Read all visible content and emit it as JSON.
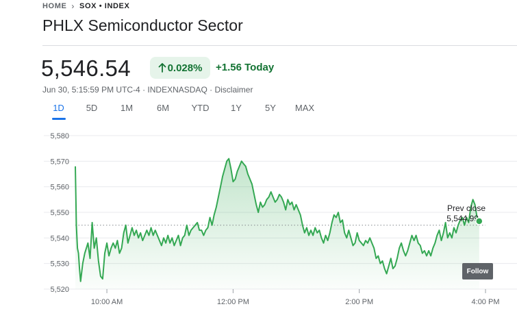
{
  "breadcrumb": {
    "home": "HOME",
    "current": "SOX • INDEX"
  },
  "title": "PHLX Semiconductor Sector",
  "price": "5,546.54",
  "change": {
    "pct": "0.028%",
    "abs": "+1.56 Today",
    "direction_icon": "arrow-up-icon"
  },
  "meta": {
    "timestamp": "Jun 30, 5:15:59 PM UTC-4",
    "exchange": "INDEXNASDAQ",
    "sep": "·",
    "disclaimer": "Disclaimer"
  },
  "tabs": [
    "1D",
    "5D",
    "1M",
    "6M",
    "YTD",
    "1Y",
    "5Y",
    "MAX"
  ],
  "active_tab": "1D",
  "follow_label": "Follow",
  "colors": {
    "positive": "#137333",
    "line": "#34a853",
    "accent": "#1a73e8"
  },
  "chart_data": {
    "type": "area",
    "title": "",
    "ylim": [
      5520,
      5580
    ],
    "y_ticks": [
      5580,
      5570,
      5560,
      5550,
      5540,
      5530,
      5520
    ],
    "y_tick_labels": [
      "5,580",
      "5,570",
      "5,560",
      "5,550",
      "5,540",
      "5,530",
      "5,520"
    ],
    "x_range_minutes": [
      570,
      960
    ],
    "x_ticks": [
      600,
      720,
      840,
      960
    ],
    "x_tick_labels": [
      "10:00 AM",
      "12:00 PM",
      "2:00 PM",
      "4:00 PM"
    ],
    "prev_close": 5544.99,
    "prev_close_label": "Prev close",
    "prev_close_value": "5,544.99",
    "last_value": 5546.54,
    "series": [
      {
        "name": "SOX",
        "points": [
          [
            570,
            5568
          ],
          [
            571,
            5545
          ],
          [
            572,
            5536
          ],
          [
            573,
            5534
          ],
          [
            574,
            5528
          ],
          [
            575,
            5523
          ],
          [
            577,
            5530
          ],
          [
            579,
            5534
          ],
          [
            582,
            5538
          ],
          [
            584,
            5532
          ],
          [
            586,
            5546
          ],
          [
            588,
            5536
          ],
          [
            590,
            5540
          ],
          [
            592,
            5531
          ],
          [
            594,
            5525
          ],
          [
            596,
            5524
          ],
          [
            598,
            5534
          ],
          [
            600,
            5538
          ],
          [
            602,
            5533
          ],
          [
            604,
            5536
          ],
          [
            606,
            5538
          ],
          [
            608,
            5536
          ],
          [
            610,
            5539
          ],
          [
            612,
            5534
          ],
          [
            614,
            5536
          ],
          [
            616,
            5542
          ],
          [
            618,
            5545
          ],
          [
            620,
            5538
          ],
          [
            622,
            5541
          ],
          [
            624,
            5544
          ],
          [
            626,
            5541
          ],
          [
            628,
            5543
          ],
          [
            630,
            5540
          ],
          [
            632,
            5542
          ],
          [
            634,
            5539
          ],
          [
            636,
            5541
          ],
          [
            638,
            5543
          ],
          [
            640,
            5541
          ],
          [
            642,
            5544
          ],
          [
            644,
            5541
          ],
          [
            646,
            5543
          ],
          [
            648,
            5541
          ],
          [
            650,
            5539
          ],
          [
            652,
            5537
          ],
          [
            654,
            5540
          ],
          [
            656,
            5538
          ],
          [
            658,
            5541
          ],
          [
            660,
            5538
          ],
          [
            662,
            5540
          ],
          [
            664,
            5537
          ],
          [
            666,
            5539
          ],
          [
            668,
            5541
          ],
          [
            670,
            5537
          ],
          [
            672,
            5540
          ],
          [
            674,
            5541
          ],
          [
            676,
            5545
          ],
          [
            678,
            5541
          ],
          [
            680,
            5543
          ],
          [
            682,
            5544
          ],
          [
            684,
            5545
          ],
          [
            686,
            5546
          ],
          [
            688,
            5543
          ],
          [
            690,
            5543
          ],
          [
            692,
            5541
          ],
          [
            694,
            5543
          ],
          [
            696,
            5544
          ],
          [
            698,
            5548
          ],
          [
            700,
            5545
          ],
          [
            702,
            5549
          ],
          [
            704,
            5552
          ],
          [
            706,
            5556
          ],
          [
            708,
            5560
          ],
          [
            710,
            5564
          ],
          [
            712,
            5567
          ],
          [
            714,
            5570
          ],
          [
            716,
            5571
          ],
          [
            718,
            5567
          ],
          [
            720,
            5562
          ],
          [
            722,
            5563
          ],
          [
            724,
            5566
          ],
          [
            726,
            5568
          ],
          [
            728,
            5570
          ],
          [
            730,
            5569
          ],
          [
            732,
            5568
          ],
          [
            734,
            5565
          ],
          [
            736,
            5563
          ],
          [
            738,
            5561
          ],
          [
            740,
            5557
          ],
          [
            742,
            5553
          ],
          [
            744,
            5550
          ],
          [
            746,
            5554
          ],
          [
            748,
            5552
          ],
          [
            750,
            5553
          ],
          [
            752,
            5555
          ],
          [
            754,
            5556
          ],
          [
            756,
            5558
          ],
          [
            758,
            5556
          ],
          [
            760,
            5554
          ],
          [
            762,
            5555
          ],
          [
            764,
            5557
          ],
          [
            766,
            5556
          ],
          [
            768,
            5554
          ],
          [
            770,
            5551
          ],
          [
            772,
            5555
          ],
          [
            774,
            5553
          ],
          [
            776,
            5554
          ],
          [
            778,
            5551
          ],
          [
            780,
            5553
          ],
          [
            782,
            5551
          ],
          [
            784,
            5549
          ],
          [
            786,
            5545
          ],
          [
            788,
            5542
          ],
          [
            790,
            5544
          ],
          [
            792,
            5541
          ],
          [
            794,
            5543
          ],
          [
            796,
            5541
          ],
          [
            798,
            5544
          ],
          [
            800,
            5542
          ],
          [
            802,
            5543
          ],
          [
            804,
            5540
          ],
          [
            806,
            5538
          ],
          [
            808,
            5541
          ],
          [
            810,
            5539
          ],
          [
            812,
            5542
          ],
          [
            814,
            5546
          ],
          [
            816,
            5549
          ],
          [
            818,
            5548
          ],
          [
            820,
            5550
          ],
          [
            822,
            5546
          ],
          [
            824,
            5547
          ],
          [
            826,
            5542
          ],
          [
            828,
            5540
          ],
          [
            830,
            5543
          ],
          [
            832,
            5540
          ],
          [
            834,
            5537
          ],
          [
            836,
            5538
          ],
          [
            838,
            5542
          ],
          [
            840,
            5539
          ],
          [
            842,
            5538
          ],
          [
            844,
            5537
          ],
          [
            846,
            5539
          ],
          [
            848,
            5538
          ],
          [
            850,
            5540
          ],
          [
            852,
            5538
          ],
          [
            854,
            5536
          ],
          [
            856,
            5532
          ],
          [
            858,
            5533
          ],
          [
            860,
            5530
          ],
          [
            862,
            5531
          ],
          [
            864,
            5528
          ],
          [
            866,
            5526
          ],
          [
            868,
            5529
          ],
          [
            870,
            5532
          ],
          [
            872,
            5528
          ],
          [
            874,
            5529
          ],
          [
            876,
            5532
          ],
          [
            878,
            5536
          ],
          [
            880,
            5538
          ],
          [
            882,
            5535
          ],
          [
            884,
            5533
          ],
          [
            886,
            5535
          ],
          [
            888,
            5538
          ],
          [
            890,
            5541
          ],
          [
            892,
            5539
          ],
          [
            894,
            5541
          ],
          [
            896,
            5538
          ],
          [
            898,
            5537
          ],
          [
            900,
            5534
          ],
          [
            902,
            5535
          ],
          [
            904,
            5533
          ],
          [
            906,
            5535
          ],
          [
            908,
            5533
          ],
          [
            910,
            5536
          ],
          [
            912,
            5538
          ],
          [
            914,
            5541
          ],
          [
            916,
            5543
          ],
          [
            918,
            5539
          ],
          [
            920,
            5542
          ],
          [
            922,
            5546
          ],
          [
            924,
            5540
          ],
          [
            926,
            5542
          ],
          [
            928,
            5540
          ],
          [
            930,
            5544
          ],
          [
            932,
            5542
          ],
          [
            934,
            5545
          ],
          [
            936,
            5547
          ],
          [
            938,
            5548
          ],
          [
            940,
            5545
          ],
          [
            942,
            5548
          ],
          [
            944,
            5546
          ],
          [
            946,
            5552
          ],
          [
            948,
            5555
          ],
          [
            950,
            5553
          ],
          [
            952,
            5548
          ],
          [
            954,
            5546.54
          ]
        ]
      }
    ]
  }
}
